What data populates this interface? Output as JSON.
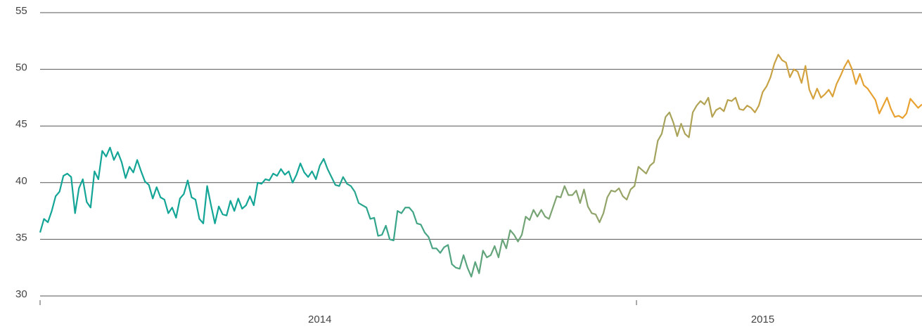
{
  "chart_data": {
    "type": "line",
    "categories": [
      null,
      null,
      null,
      null,
      null,
      null,
      null,
      null,
      null,
      null,
      null,
      null,
      null,
      null,
      null,
      null,
      null,
      null,
      null,
      null,
      null,
      null,
      null,
      null,
      null,
      null,
      null,
      null,
      null,
      null,
      null,
      null,
      null,
      null,
      null,
      null,
      null,
      null,
      null,
      null,
      null,
      null,
      null,
      null,
      null,
      null,
      null,
      null,
      null,
      null,
      null,
      null,
      null,
      null,
      null,
      null,
      null,
      null,
      null,
      null,
      null,
      null,
      null,
      null,
      null,
      null,
      null,
      null,
      null,
      null,
      null,
      null,
      "2014",
      null,
      null,
      null,
      null,
      null,
      null,
      null,
      null,
      null,
      null,
      null,
      null,
      null,
      null,
      null,
      null,
      null,
      null,
      null,
      null,
      null,
      null,
      null,
      null,
      null,
      null,
      null,
      null,
      null,
      null,
      null,
      null,
      null,
      null,
      null,
      null,
      null,
      null,
      null,
      null,
      null,
      null,
      null,
      null,
      null,
      null,
      null,
      null,
      null,
      null,
      null,
      null,
      null,
      null,
      null,
      null,
      null,
      null,
      null,
      null,
      null,
      null,
      null,
      null,
      null,
      null,
      null,
      null,
      null,
      null,
      null,
      null,
      null,
      null,
      null,
      null,
      null,
      null,
      null,
      null,
      null,
      null,
      null,
      null,
      null,
      null,
      null,
      null,
      null,
      null,
      null,
      null,
      null,
      null,
      null,
      null,
      null,
      null,
      null,
      null,
      null,
      null,
      null,
      null,
      null,
      null,
      null,
      null,
      null,
      null,
      null,
      null,
      null,
      "2015",
      null,
      null,
      null,
      null,
      null,
      null,
      null,
      null,
      null,
      null,
      null,
      null,
      null,
      null,
      null,
      null,
      null,
      null,
      null,
      null,
      null,
      null,
      null,
      null,
      null,
      null,
      null,
      null,
      null,
      null,
      null,
      null,
      null,
      null,
      null,
      null,
      null,
      null,
      null,
      null,
      null
    ],
    "series": [
      {
        "color_stops": [
          "#13a596",
          "#8ea46c",
          "#e9a12f"
        ],
        "values": [
          35.6,
          36.8,
          36.5,
          37.5,
          38.8,
          39.2,
          40.6,
          40.8,
          40.5,
          37.3,
          39.5,
          40.3,
          38.3,
          37.8,
          41.0,
          40.3,
          42.8,
          42.3,
          43.1,
          42.0,
          42.7,
          41.8,
          40.4,
          41.4,
          40.9,
          42.0,
          41.0,
          40.1,
          39.8,
          38.6,
          39.6,
          38.7,
          38.5,
          37.3,
          37.8,
          36.9,
          38.6,
          39.0,
          40.2,
          38.7,
          38.5,
          36.8,
          36.4,
          39.7,
          38.0,
          36.4,
          37.9,
          37.2,
          37.1,
          38.4,
          37.5,
          38.6,
          37.7,
          38.0,
          38.8,
          38.0,
          40.0,
          39.9,
          40.3,
          40.2,
          40.8,
          40.6,
          41.2,
          40.7,
          41.0,
          40.0,
          40.7,
          41.7,
          40.9,
          40.5,
          41.0,
          40.3,
          41.5,
          42.1,
          41.2,
          40.5,
          39.8,
          39.7,
          40.5,
          39.9,
          39.7,
          39.2,
          38.2,
          38.0,
          37.8,
          36.8,
          36.9,
          35.3,
          35.4,
          36.2,
          35.0,
          34.9,
          37.5,
          37.3,
          37.8,
          37.8,
          37.4,
          36.4,
          36.3,
          35.6,
          35.2,
          34.2,
          34.2,
          33.8,
          34.3,
          34.5,
          32.8,
          32.5,
          32.4,
          33.6,
          32.5,
          31.7,
          33.0,
          32.0,
          34.0,
          33.4,
          33.6,
          34.4,
          33.4,
          35.0,
          34.2,
          35.8,
          35.4,
          34.8,
          35.4,
          37.0,
          36.7,
          37.6,
          37.0,
          37.6,
          37.0,
          36.8,
          37.8,
          38.8,
          38.7,
          39.7,
          38.9,
          38.9,
          39.3,
          38.2,
          39.4,
          37.9,
          37.3,
          37.2,
          36.5,
          37.3,
          38.7,
          39.3,
          39.2,
          39.5,
          38.8,
          38.5,
          39.4,
          39.7,
          41.4,
          41.1,
          40.8,
          41.5,
          41.8,
          43.7,
          44.3,
          45.8,
          46.2,
          45.3,
          44.1,
          45.2,
          44.3,
          44.0,
          46.2,
          46.8,
          47.2,
          46.9,
          47.5,
          45.8,
          46.4,
          46.6,
          46.3,
          47.3,
          47.2,
          47.5,
          46.5,
          46.4,
          46.8,
          46.6,
          46.2,
          46.8,
          48.0,
          48.5,
          49.3,
          50.5,
          51.3,
          50.8,
          50.6,
          49.3,
          50.0,
          49.8,
          48.8,
          50.3,
          48.2,
          47.4,
          48.3,
          47.5,
          47.8,
          48.2,
          47.6,
          48.7,
          49.4,
          50.2,
          50.8,
          50.0,
          48.7,
          49.6,
          48.6,
          48.3,
          47.8,
          47.3,
          46.1,
          46.8,
          47.5,
          46.5,
          45.8,
          45.9,
          45.7,
          46.1,
          47.4,
          47.0,
          46.6,
          46.9
        ]
      }
    ],
    "ylim": [
      30,
      55
    ],
    "yticks": [
      30,
      35,
      40,
      45,
      50,
      55
    ],
    "grid": true
  }
}
